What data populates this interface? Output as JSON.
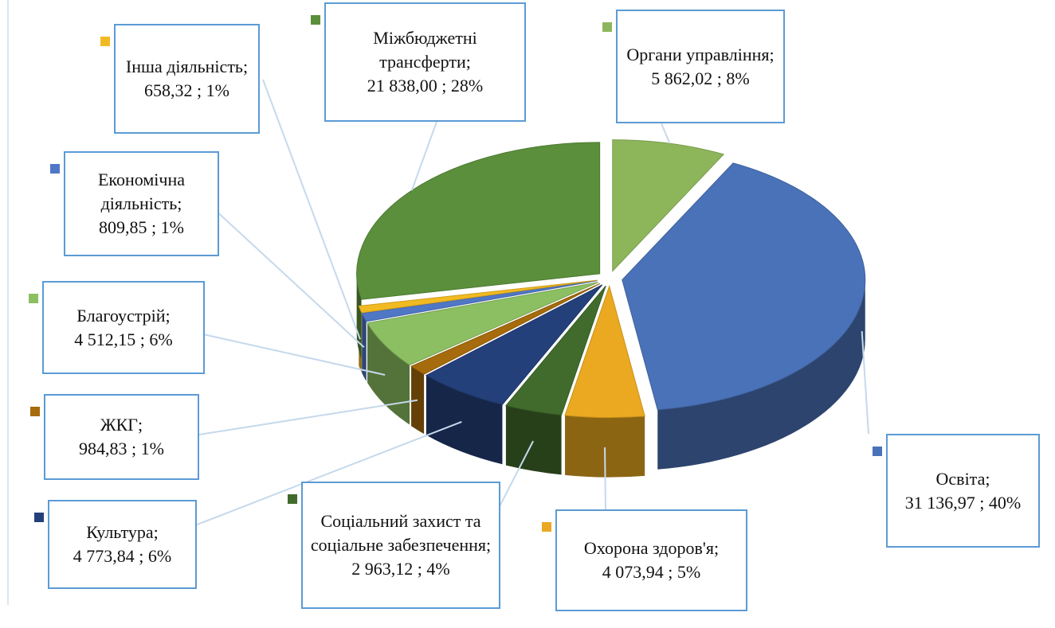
{
  "chart_data": {
    "type": "pie",
    "categories": [
      "Органи управління;",
      "Освіта;",
      "Охорона здоров'я;",
      "Соціальний захист та соціальне забезпечення;",
      "Культура;",
      "ЖКГ;",
      "Благоустрій;",
      "Економічна діяльність;",
      "Інша діяльність;",
      "Міжбюджетні трансферти;"
    ],
    "values": [
      5862.02,
      31136.97,
      4073.94,
      2963.12,
      4773.84,
      984.83,
      4512.15,
      809.85,
      658.32,
      21838.0
    ],
    "value_labels": [
      "5 862,02",
      "31 136,97",
      "4 073,94",
      "2 963,12",
      "4 773,84",
      "984,83",
      "4 512,15",
      "809,85",
      "658,32",
      "21 838,00"
    ],
    "percents": [
      8,
      40,
      5,
      4,
      6,
      1,
      6,
      1,
      1,
      28
    ],
    "percent_labels": [
      "; 8%",
      "; 40%",
      "; 5%",
      "; 4%",
      "; 6%",
      "; 1%",
      "; 6%",
      "; 1%",
      "; 1%",
      "; 28%"
    ],
    "colors": [
      "#8db65a",
      "#4a72b8",
      "#eaa920",
      "#416b2c",
      "#24407a",
      "#a66b0c",
      "#8cbf62",
      "#4f77c6",
      "#f2ba22",
      "#5b8f3b"
    ]
  }
}
